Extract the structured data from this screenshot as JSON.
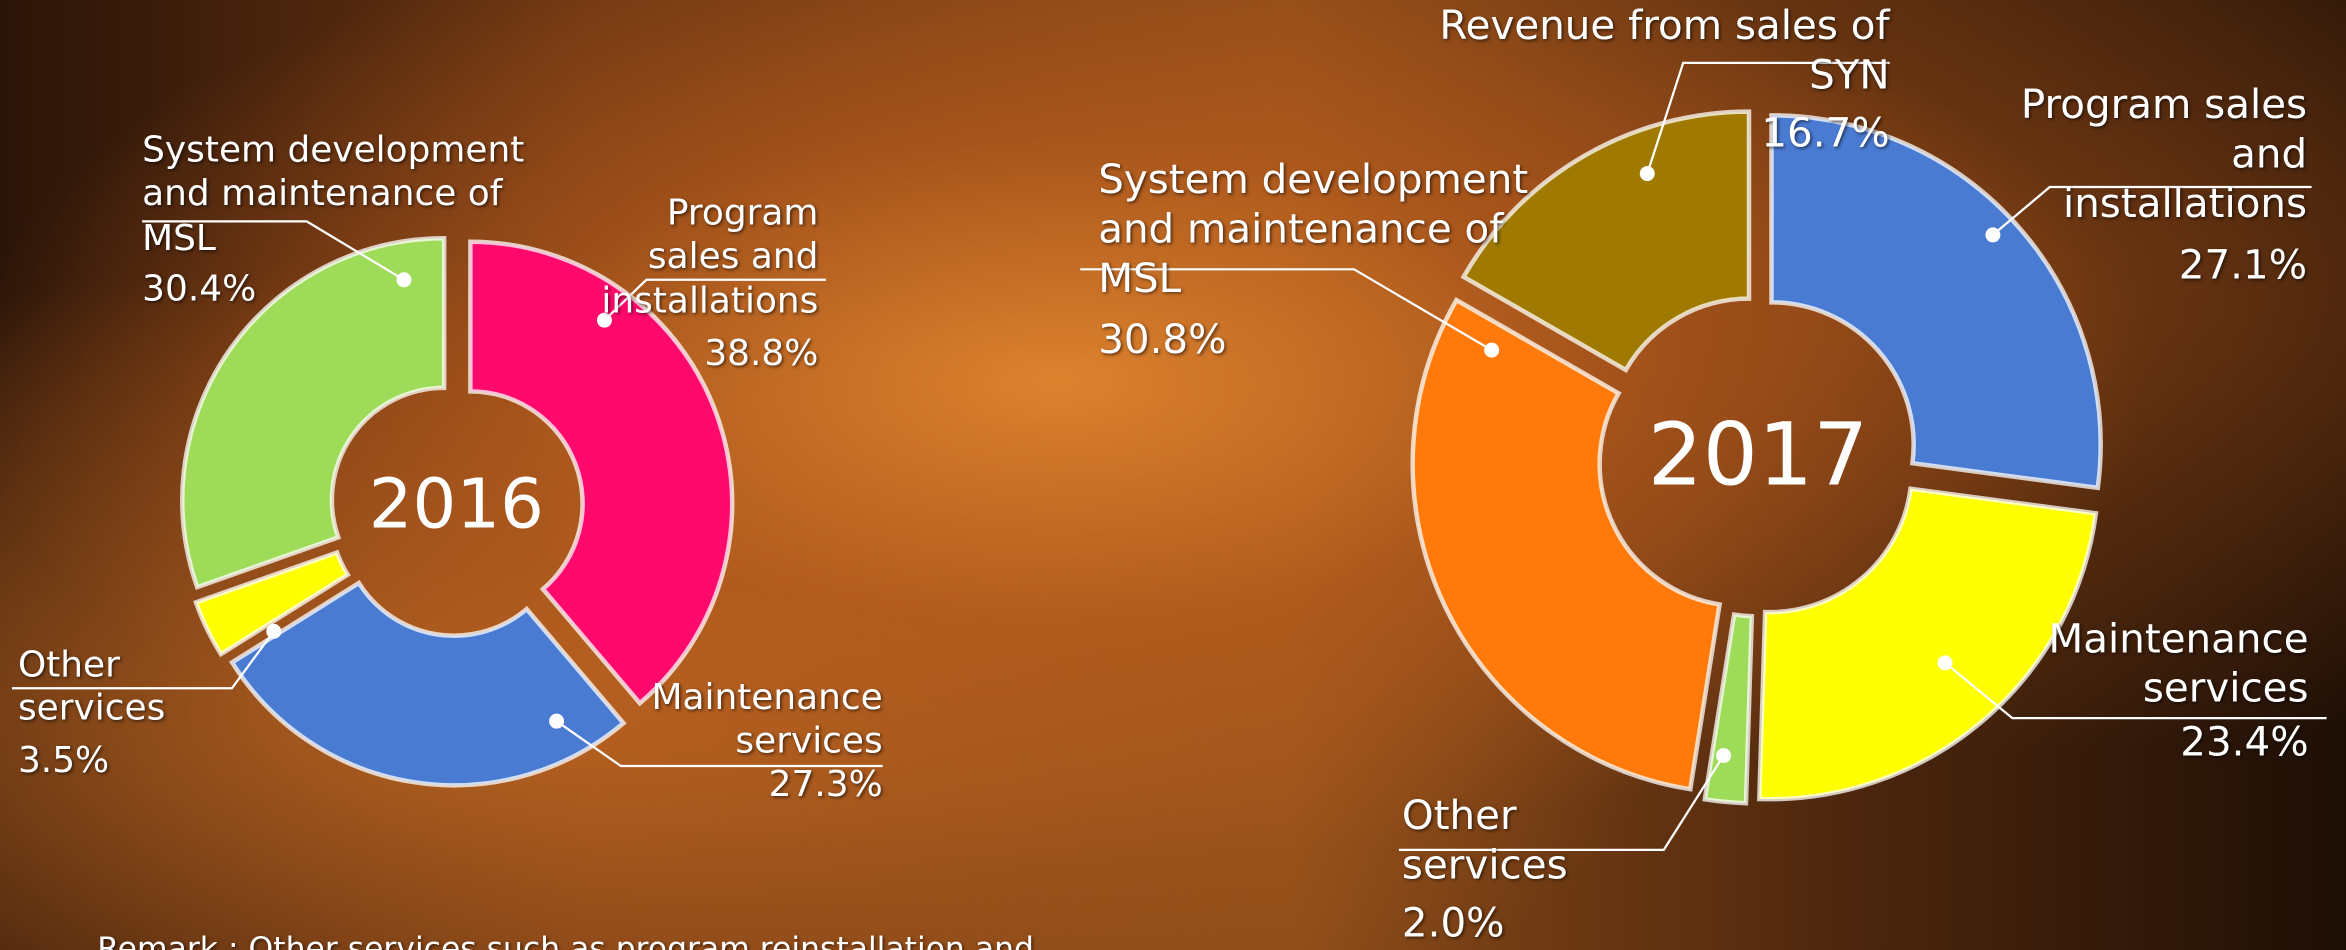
{
  "chart_data": [
    {
      "type": "donut",
      "title": "2016",
      "categories": [
        "Program sales and installations",
        "Maintenance services",
        "Other services",
        "System development and maintenance of MSL"
      ],
      "values": [
        38.8,
        27.3,
        3.5,
        30.4
      ],
      "value_labels": [
        "38.8%",
        "27.3%",
        "3.5%",
        "30.4%"
      ],
      "colors": [
        "#ff0a6c",
        "#4a7bd3",
        "#ffff00",
        "#9ddb58"
      ]
    },
    {
      "type": "donut",
      "title": "2017",
      "categories": [
        "Program sales and installations",
        "Maintenance services",
        "Other services",
        "System development and maintenance of MSL",
        "Revenue from sales of SYN"
      ],
      "values": [
        27.1,
        23.4,
        2.0,
        30.8,
        16.7
      ],
      "value_labels": [
        "27.1%",
        "23.4%",
        "2.0%",
        "30.8%",
        "16.7%"
      ],
      "colors": [
        "#4a7bd3",
        "#ffff00",
        "#9ddb58",
        "#ff7a0a",
        "#a07a00"
      ]
    }
  ],
  "remark": "Remark : Other services such as program reinstallation and"
}
